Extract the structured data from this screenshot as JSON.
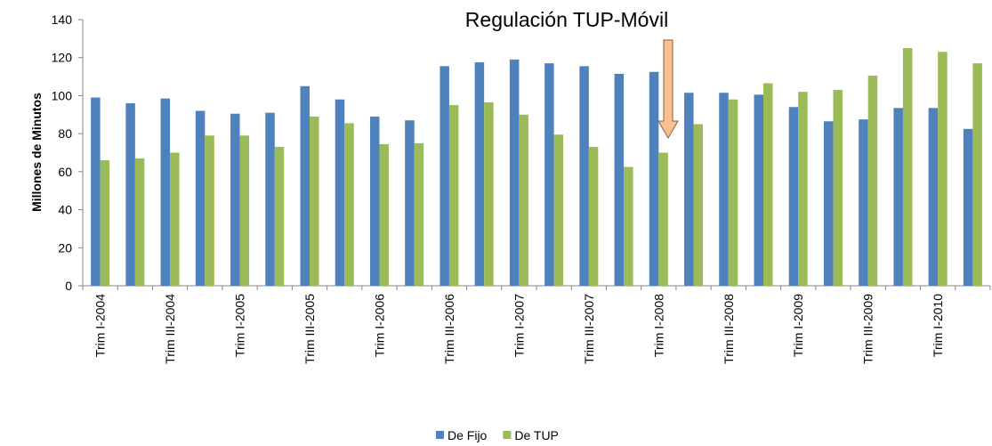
{
  "chart_data": {
    "type": "bar",
    "annotation": "Regulación TUP-Móvil",
    "y_label": "Millones de Minutos",
    "categories": [
      "Trim I-2004",
      null,
      "Trim III-2004",
      null,
      "Trim I-2005",
      null,
      "Trim III-2005",
      null,
      "Trim I-2006",
      null,
      "Trim III-2006",
      null,
      "Trim I-2007",
      null,
      "Trim III-2007",
      null,
      "Trim I-2008",
      null,
      "Trim III-2008",
      null,
      "Trim I-2009",
      null,
      "Trim III-2009",
      null,
      "Trim I-2010",
      null
    ],
    "series": [
      {
        "name": "De Fijo",
        "color": "#4f81bd",
        "values": [
          99,
          96,
          98.5,
          92,
          90.5,
          91,
          105,
          98,
          89,
          87,
          115.5,
          117.5,
          119,
          117,
          115.5,
          111.5,
          112.5,
          101.5,
          101.5,
          100.5,
          94,
          86.5,
          87.5,
          93.5,
          93.5,
          82.5
        ]
      },
      {
        "name": "De TUP",
        "color": "#9bbb59",
        "values": [
          66,
          67,
          70,
          79,
          79,
          73,
          89,
          85.5,
          74.5,
          75,
          95,
          96.5,
          90,
          79.5,
          73,
          62.5,
          70,
          85,
          98,
          106.5,
          102,
          103,
          110.5,
          125,
          123,
          117
        ]
      }
    ],
    "ylim": [
      0,
      140
    ],
    "yticks": [
      0,
      20,
      40,
      60,
      80,
      100,
      120,
      140
    ],
    "legend": "bottom"
  }
}
